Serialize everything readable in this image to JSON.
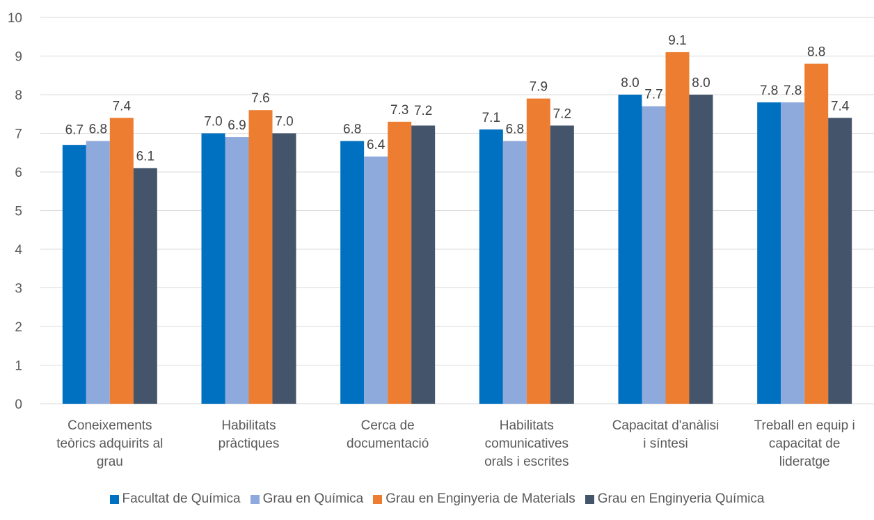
{
  "chart_data": {
    "type": "bar",
    "categories": [
      [
        "Coneixements",
        "teòrics adquirits al",
        "grau"
      ],
      [
        "Habilitats",
        "pràctiques"
      ],
      [
        "Cerca de",
        "documentació"
      ],
      [
        "Habilitats",
        "comunicatives",
        "orals i escrites"
      ],
      [
        "Capacitat d'anàlisi",
        "i síntesi"
      ],
      [
        "Treball en equip i",
        "capacitat de",
        "lideratge"
      ]
    ],
    "series": [
      {
        "name": "Facultat de Química",
        "color": "#0070C0",
        "values": [
          6.7,
          7.0,
          6.8,
          7.1,
          8.0,
          7.8
        ],
        "labels": [
          "6.7",
          "7.0",
          "6.8",
          "7.1",
          "8.0",
          "7.8"
        ]
      },
      {
        "name": "Grau en Química",
        "color": "#8EA9DB",
        "values": [
          6.8,
          6.9,
          6.4,
          6.8,
          7.7,
          7.8
        ],
        "labels": [
          "6.8",
          "6.9",
          "6.4",
          "6.8",
          "7.7",
          "7.8"
        ]
      },
      {
        "name": "Grau en Enginyeria de Materials",
        "color": "#ED7D31",
        "values": [
          7.4,
          7.6,
          7.3,
          7.9,
          9.1,
          8.8
        ],
        "labels": [
          "7.4",
          "7.6",
          "7.3",
          "7.9",
          "9.1",
          "8.8"
        ]
      },
      {
        "name": "Grau en Enginyeria Química",
        "color": "#44546A",
        "values": [
          6.1,
          7.0,
          7.2,
          7.2,
          8.0,
          7.4
        ],
        "labels": [
          "6.1",
          "7.0",
          "7.2",
          "7.2",
          "8.0",
          "7.4"
        ]
      }
    ],
    "yticks": [
      "0",
      "1",
      "2",
      "3",
      "4",
      "5",
      "6",
      "7",
      "8",
      "9",
      "10"
    ],
    "ylim": [
      0,
      10
    ],
    "grid": true,
    "legend_position": "bottom",
    "gridline_color": "#D9D9D9"
  }
}
